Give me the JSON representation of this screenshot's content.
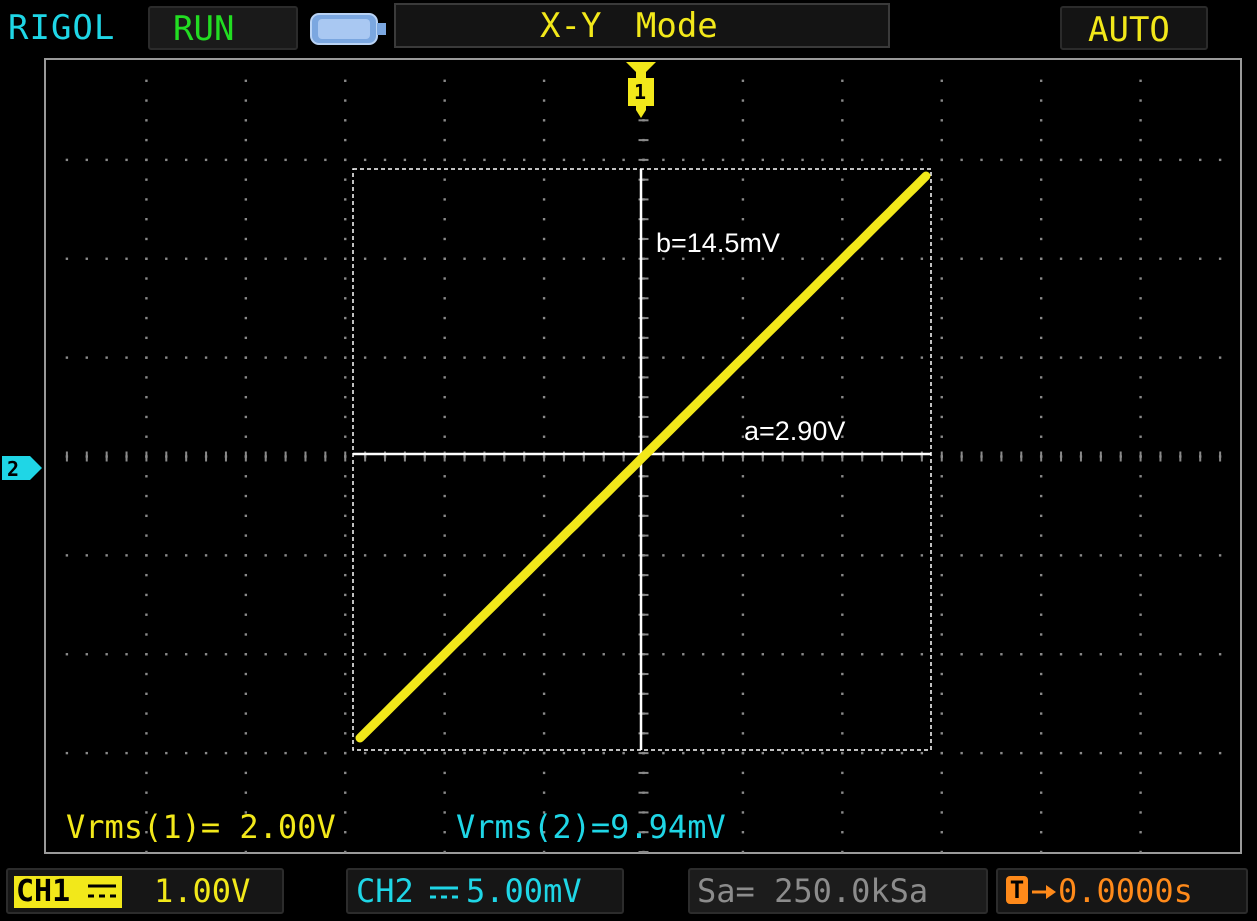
{
  "header": {
    "brand": "RIGOL",
    "run_status": "RUN",
    "mode": "X-Y Mode",
    "trigger_mode": "AUTO"
  },
  "markers": {
    "ch1_marker": "1",
    "ch2_marker": "2"
  },
  "annotations": {
    "b_label": "b=14.5mV",
    "a_label": "a=2.90V"
  },
  "measurements": {
    "vrms1": "Vrms(1)= 2.00V",
    "vrms2": "Vrms(2)=9.94mV"
  },
  "footer": {
    "ch1_tag": "CH1",
    "ch1_scale": "1.00V",
    "ch2_label": "CH2",
    "ch2_scale": "5.00mV",
    "sample_rate": "Sa= 250.0kSa",
    "t_tag": "T",
    "trigger_offset": "0.0000s"
  },
  "colors": {
    "trace": "#f2e81a",
    "ch1": "#f2e81a",
    "ch2": "#1fd6e6",
    "run": "#22dd22",
    "trigger_time": "#ff8a1a",
    "grid": "#8a8a8a"
  }
}
